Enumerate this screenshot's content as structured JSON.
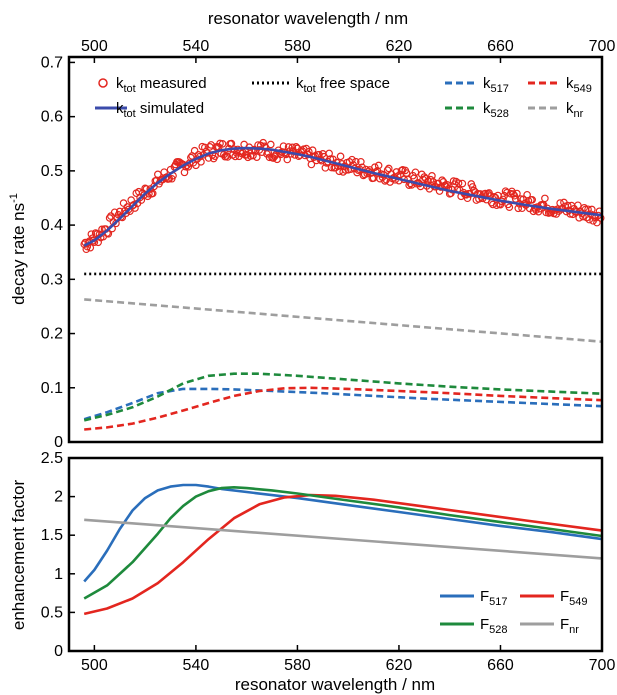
{
  "chart_data": [
    {
      "type": "line",
      "top_xlabel": "resonator wavelength / nm",
      "ylabel": "decay rate ns-1",
      "xlim": [
        490,
        700
      ],
      "ylim": [
        0,
        0.71
      ],
      "top_xticks": [
        "500",
        "540",
        "580",
        "620",
        "660",
        "700"
      ],
      "yticks": [
        "0",
        "0.1",
        "0.2",
        "0.3",
        "0.4",
        "0.5",
        "0.6",
        "0.7"
      ],
      "series": [
        {
          "name": "ktot measured",
          "label_main": "k",
          "label_sub": "tot",
          "label_rest": " measured",
          "color": "#e3261f",
          "style": "markers",
          "x": [
            496,
            500,
            505,
            510,
            515,
            520,
            525,
            530,
            535,
            540,
            545,
            550,
            555,
            560,
            565,
            570,
            575,
            580,
            585,
            590,
            595,
            600,
            605,
            610,
            615,
            620,
            625,
            630,
            635,
            640,
            645,
            650,
            655,
            660,
            665,
            670,
            675,
            680,
            685,
            690,
            695,
            700
          ],
          "y": [
            0.365,
            0.375,
            0.395,
            0.42,
            0.44,
            0.46,
            0.48,
            0.495,
            0.51,
            0.525,
            0.535,
            0.54,
            0.54,
            0.54,
            0.54,
            0.537,
            0.533,
            0.53,
            0.525,
            0.52,
            0.515,
            0.51,
            0.505,
            0.5,
            0.495,
            0.49,
            0.485,
            0.48,
            0.475,
            0.47,
            0.465,
            0.46,
            0.455,
            0.45,
            0.447,
            0.443,
            0.438,
            0.434,
            0.43,
            0.426,
            0.422,
            0.418
          ]
        },
        {
          "name": "ktot simulated",
          "label_main": "k",
          "label_sub": "tot",
          "label_rest": " simulated",
          "color": "#3b4bab",
          "style": "solid",
          "x": [
            496,
            500,
            505,
            510,
            515,
            520,
            525,
            530,
            535,
            540,
            545,
            550,
            555,
            560,
            565,
            570,
            575,
            580,
            585,
            590,
            595,
            600,
            610,
            620,
            630,
            640,
            650,
            660,
            670,
            680,
            690,
            700
          ],
          "y": [
            0.362,
            0.372,
            0.39,
            0.412,
            0.435,
            0.458,
            0.478,
            0.495,
            0.51,
            0.522,
            0.532,
            0.538,
            0.541,
            0.542,
            0.541,
            0.539,
            0.535,
            0.531,
            0.526,
            0.52,
            0.514,
            0.508,
            0.496,
            0.485,
            0.474,
            0.463,
            0.454,
            0.445,
            0.437,
            0.43,
            0.424,
            0.418
          ]
        },
        {
          "name": "ktot free space",
          "label_main": "k",
          "label_sub": "tot",
          "label_rest": " free space",
          "color": "#000000",
          "style": "dotted",
          "x": [
            496,
            700
          ],
          "y": [
            0.31,
            0.31
          ]
        },
        {
          "name": "k517",
          "label_main": "k",
          "label_sub": "517",
          "label_rest": "",
          "color": "#2a6ebb",
          "style": "dashed",
          "x": [
            496,
            505,
            515,
            525,
            535,
            545,
            555,
            570,
            590,
            610,
            630,
            650,
            670,
            700
          ],
          "y": [
            0.042,
            0.055,
            0.072,
            0.09,
            0.098,
            0.098,
            0.097,
            0.094,
            0.09,
            0.085,
            0.08,
            0.076,
            0.072,
            0.066
          ]
        },
        {
          "name": "k528",
          "label_main": "k",
          "label_sub": "528",
          "label_rest": "",
          "color": "#1e8a3c",
          "style": "dashed",
          "x": [
            496,
            505,
            515,
            525,
            535,
            545,
            555,
            565,
            580,
            600,
            620,
            640,
            660,
            680,
            700
          ],
          "y": [
            0.04,
            0.05,
            0.064,
            0.084,
            0.108,
            0.122,
            0.126,
            0.126,
            0.122,
            0.115,
            0.108,
            0.102,
            0.097,
            0.093,
            0.089
          ]
        },
        {
          "name": "k549",
          "label_main": "k",
          "label_sub": "549",
          "label_rest": "",
          "color": "#e3261f",
          "style": "dashed",
          "x": [
            496,
            505,
            515,
            525,
            535,
            545,
            555,
            565,
            575,
            585,
            600,
            620,
            640,
            660,
            680,
            700
          ],
          "y": [
            0.023,
            0.027,
            0.034,
            0.045,
            0.058,
            0.072,
            0.085,
            0.094,
            0.099,
            0.1,
            0.098,
            0.094,
            0.09,
            0.085,
            0.081,
            0.077
          ]
        },
        {
          "name": "knr",
          "label_main": "k",
          "label_sub": "nr",
          "label_rest": "",
          "color": "#9e9e9e",
          "style": "dashed",
          "x": [
            496,
            700
          ],
          "y": [
            0.263,
            0.185
          ]
        }
      ]
    },
    {
      "type": "line",
      "xlabel": "resonator wavelength / nm",
      "ylabel": "enhancement factor",
      "xlim": [
        490,
        700
      ],
      "ylim": [
        0,
        2.5
      ],
      "xticks": [
        "500",
        "540",
        "580",
        "620",
        "660",
        "700"
      ],
      "yticks": [
        "0",
        "0.5",
        "1",
        "1.5",
        "2",
        "2.5"
      ],
      "series": [
        {
          "name": "F517",
          "label_main": "F",
          "label_sub": "517",
          "color": "#2a6ebb",
          "style": "solid",
          "x": [
            496,
            500,
            505,
            510,
            515,
            520,
            525,
            530,
            535,
            540,
            545,
            550,
            560,
            580,
            600,
            620,
            640,
            660,
            680,
            700
          ],
          "y": [
            0.9,
            1.05,
            1.3,
            1.58,
            1.82,
            1.98,
            2.08,
            2.13,
            2.15,
            2.15,
            2.13,
            2.1,
            2.06,
            1.98,
            1.89,
            1.8,
            1.71,
            1.62,
            1.54,
            1.45
          ]
        },
        {
          "name": "F549",
          "label_main": "F",
          "label_sub": "549",
          "color": "#e3261f",
          "style": "solid",
          "x": [
            496,
            505,
            515,
            525,
            535,
            545,
            555,
            565,
            575,
            585,
            595,
            610,
            630,
            650,
            670,
            700
          ],
          "y": [
            0.48,
            0.55,
            0.68,
            0.88,
            1.15,
            1.45,
            1.72,
            1.9,
            1.99,
            2.02,
            2.01,
            1.96,
            1.87,
            1.78,
            1.69,
            1.56
          ]
        },
        {
          "name": "F528",
          "label_main": "F",
          "label_sub": "528",
          "color": "#1e8a3c",
          "style": "solid",
          "x": [
            496,
            505,
            515,
            525,
            530,
            535,
            540,
            545,
            550,
            555,
            560,
            570,
            580,
            600,
            620,
            640,
            660,
            680,
            700
          ],
          "y": [
            0.68,
            0.85,
            1.15,
            1.52,
            1.72,
            1.88,
            2.0,
            2.07,
            2.11,
            2.12,
            2.11,
            2.08,
            2.04,
            1.95,
            1.86,
            1.76,
            1.67,
            1.58,
            1.49
          ]
        },
        {
          "name": "Fnr",
          "label_main": "F",
          "label_sub": "nr",
          "color": "#9e9e9e",
          "style": "solid",
          "x": [
            496,
            700
          ],
          "y": [
            1.7,
            1.2
          ]
        }
      ]
    }
  ]
}
